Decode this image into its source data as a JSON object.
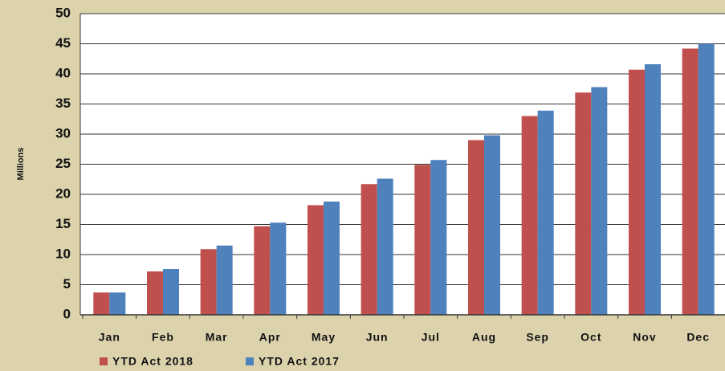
{
  "chart_data": {
    "type": "bar",
    "ylabel": "Millions",
    "categories": [
      "Jan",
      "Feb",
      "Mar",
      "Apr",
      "May",
      "Jun",
      "Jul",
      "Aug",
      "Sep",
      "Oct",
      "Nov",
      "Dec"
    ],
    "series": [
      {
        "name": "YTD Act 2018",
        "color": "#c0504d",
        "values": [
          3.7,
          7.2,
          10.9,
          14.7,
          18.2,
          21.7,
          24.9,
          29.0,
          33.0,
          36.9,
          40.7,
          44.2
        ]
      },
      {
        "name": "YTD Act 2017",
        "color": "#4f81bd",
        "values": [
          3.7,
          7.6,
          11.5,
          15.3,
          18.8,
          22.6,
          25.7,
          29.8,
          33.9,
          37.8,
          41.6,
          45.0
        ]
      }
    ],
    "ylim": [
      0,
      50
    ],
    "yticks": [
      0,
      5,
      10,
      15,
      20,
      25,
      30,
      35,
      40,
      45,
      50
    ],
    "grid": true
  }
}
